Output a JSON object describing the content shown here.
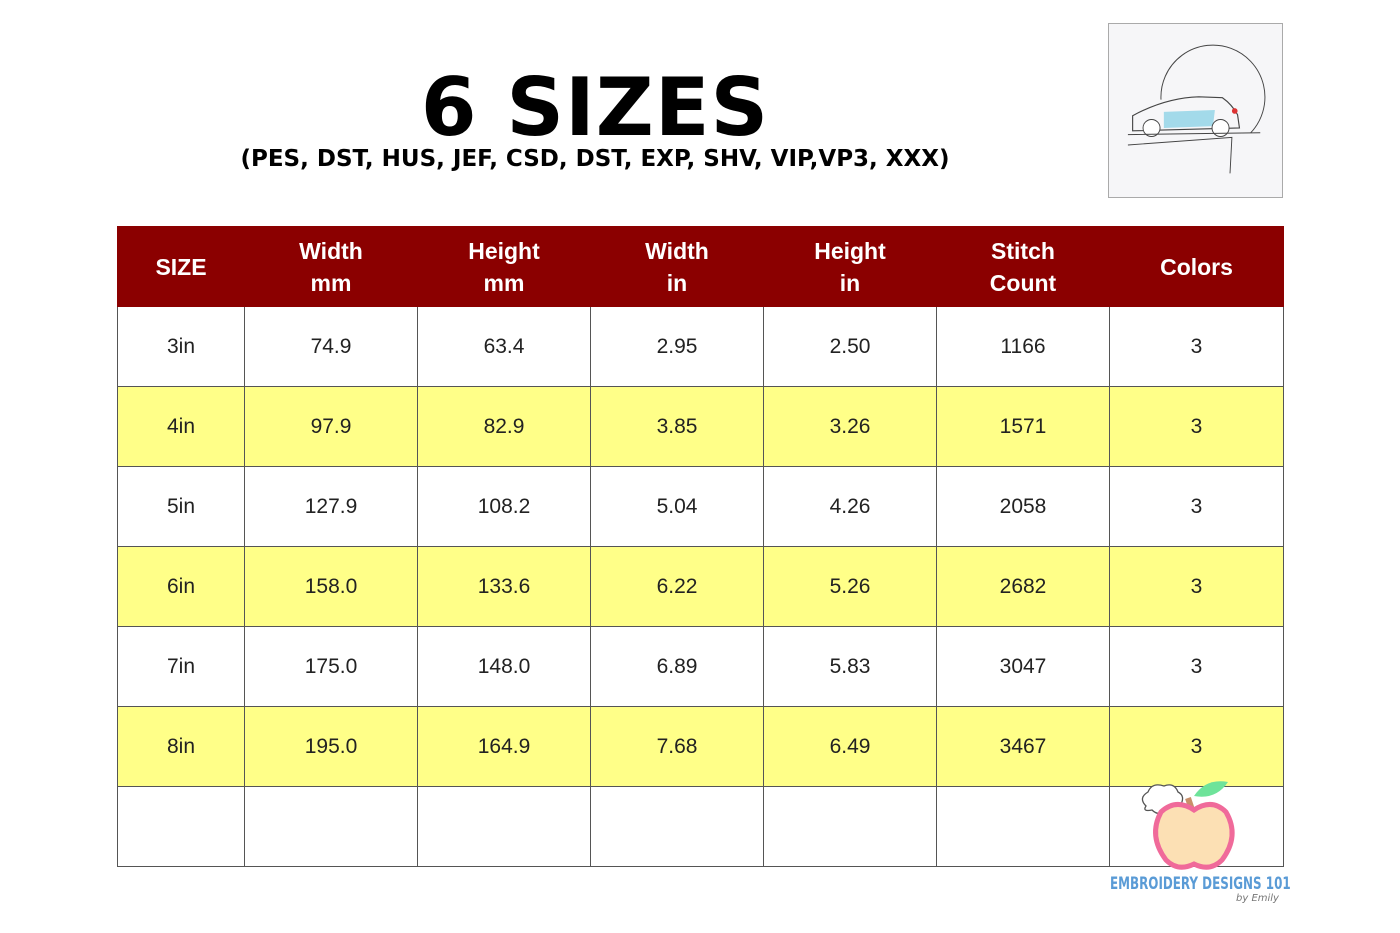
{
  "title": "6 SIZES",
  "subtitle": "(PES, DST, HUS, JEF, CSD, DST, EXP, SHV, VIP,VP3, XXX)",
  "table": {
    "headers": [
      [
        "SIZE",
        ""
      ],
      [
        "Width",
        "mm"
      ],
      [
        "Height",
        "mm"
      ],
      [
        "Width",
        "in"
      ],
      [
        "Height",
        "in"
      ],
      [
        "Stitch",
        "Count"
      ],
      [
        "Colors",
        ""
      ]
    ],
    "rows": [
      [
        "3in",
        "74.9",
        "63.4",
        "2.95",
        "2.50",
        "1166",
        "3"
      ],
      [
        "4in",
        "97.9",
        "82.9",
        "3.85",
        "3.26",
        "1571",
        "3"
      ],
      [
        "5in",
        "127.9",
        "108.2",
        "5.04",
        "4.26",
        "2058",
        "3"
      ],
      [
        "6in",
        "158.0",
        "133.6",
        "6.22",
        "5.26",
        "2682",
        "3"
      ],
      [
        "7in",
        "175.0",
        "148.0",
        "6.89",
        "5.83",
        "3047",
        "3"
      ],
      [
        "8in",
        "195.0",
        "164.9",
        "7.68",
        "6.49",
        "3467",
        "3"
      ],
      [
        "",
        "",
        "",
        "",
        "",
        "",
        ""
      ]
    ]
  },
  "colors": {
    "header": "#8b0000",
    "highlight_row": "#ffff88"
  },
  "logo": {
    "name": "EMBROIDERY DESIGNS 101",
    "sub": "by Emily"
  }
}
